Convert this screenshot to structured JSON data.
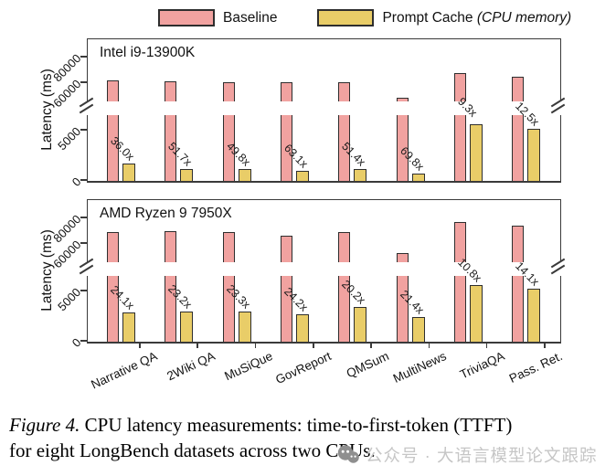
{
  "legend": {
    "baseline_label": "Baseline",
    "cache_label": "Prompt Cache",
    "cache_note": "(CPU memory)"
  },
  "colors": {
    "baseline_fill": "#F1A2A0",
    "cache_fill": "#E9CD68",
    "bar_border": "#2E2E2E",
    "axis": "#3A3A3A",
    "watermark_text": "#C6C6C6",
    "watermark_icon": "#8F8F8F"
  },
  "chart_data": [
    {
      "type": "bar",
      "title": "Intel i9-13900K",
      "ylabel": "Latency (ms)",
      "yticks": [
        "0",
        "5000",
        "60000",
        "80000"
      ],
      "axis_break": {
        "lower_range": [
          0,
          5000
        ],
        "upper_range": [
          60000,
          80000
        ]
      },
      "categories": [
        "Narrative QA",
        "2Wiki QA",
        "MuSiQue",
        "GovReport",
        "QMSum",
        "MultiNews",
        "TriviaQA",
        "Pass. Ret."
      ],
      "show_x_labels": false,
      "series": [
        {
          "name": "Baseline",
          "values": [
            62000,
            61500,
            61000,
            60800,
            60800,
            48500,
            68000,
            65000
          ]
        },
        {
          "name": "Prompt Cache (CPU memory)",
          "values": [
            1720,
            1190,
            1225,
            965,
            1185,
            695,
            7310,
            5200
          ]
        }
      ],
      "speedup_labels": [
        "36.0x",
        "51.7x",
        "49.8x",
        "63.1x",
        "51.4x",
        "69.8x",
        "9.3x",
        "12.5x"
      ]
    },
    {
      "type": "bar",
      "title": "AMD Ryzen 9 7950X",
      "ylabel": "Latency (ms)",
      "yticks": [
        "0",
        "5000",
        "60000",
        "80000"
      ],
      "axis_break": {
        "lower_range": [
          0,
          5000
        ],
        "upper_range": [
          60000,
          80000
        ]
      },
      "categories": [
        "Narrative QA",
        "2Wiki QA",
        "MuSiQue",
        "GovReport",
        "QMSum",
        "MultiNews",
        "TriviaQA",
        "Pass. Ret."
      ],
      "show_x_labels": true,
      "series": [
        {
          "name": "Baseline",
          "values": [
            69500,
            69700,
            69500,
            66500,
            69000,
            53000,
            77000,
            74000
          ]
        },
        {
          "name": "Prompt Cache (CPU memory)",
          "values": [
            2880,
            3000,
            2980,
            2750,
            3420,
            2480,
            7130,
            5250
          ]
        }
      ],
      "speedup_labels": [
        "24.1x",
        "23.2x",
        "23.3x",
        "24.2x",
        "20.2x",
        "21.4x",
        "10.8x",
        "14.1x"
      ]
    }
  ],
  "caption": {
    "label": "Figure 4.",
    "line1": "CPU latency measurements: time-to-first-token (TTFT)",
    "line2": "for eight LongBench datasets across two CPUs."
  },
  "watermark": {
    "icon": "wechat-icon",
    "text": "公众号 · 大语言模型论文跟踪"
  }
}
